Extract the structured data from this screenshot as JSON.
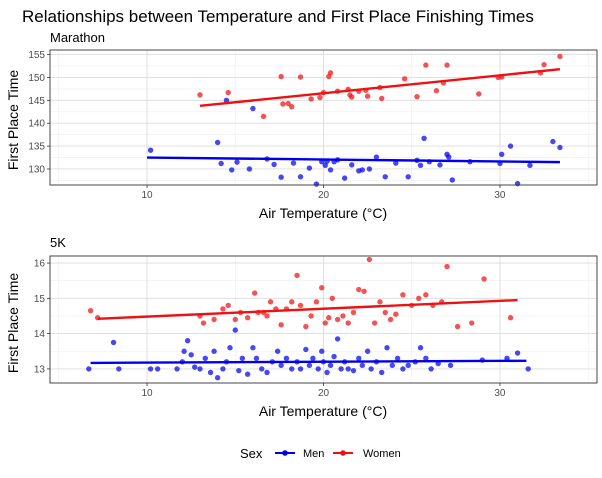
{
  "title": "Relationships between Temperature and First Place Finishing Times",
  "colors": {
    "Men": "#0000ee",
    "Women": "#ee1111",
    "grid_major": "#dcdcdc",
    "grid_minor": "#eeeeee",
    "panel_border": "#333333"
  },
  "legend": {
    "title": "Sex",
    "entries": [
      "Men",
      "Women"
    ],
    "placement": "bottom"
  },
  "chart_data": [
    {
      "type": "scatter",
      "subtitle": "Marathon",
      "xlabel": "Air Temperature (°C)",
      "ylabel": "First Place Time",
      "xlim": [
        4.5,
        35.5
      ],
      "ylim": [
        126.5,
        156.0
      ],
      "xticks": [
        10,
        20,
        30
      ],
      "yticks": [
        130,
        135,
        140,
        145,
        150,
        155
      ],
      "grid": true,
      "series": [
        {
          "name": "Men",
          "points": [
            [
              10.2,
              134.1
            ],
            [
              14.0,
              135.8
            ],
            [
              14.2,
              131.2
            ],
            [
              14.5,
              145.0
            ],
            [
              14.8,
              129.8
            ],
            [
              15.1,
              131.5
            ],
            [
              15.8,
              130.0
            ],
            [
              16.0,
              143.2
            ],
            [
              16.8,
              132.2
            ],
            [
              17.2,
              131.0
            ],
            [
              17.6,
              128.2
            ],
            [
              18.3,
              131.3
            ],
            [
              18.7,
              128.3
            ],
            [
              19.2,
              130.2
            ],
            [
              19.6,
              126.7
            ],
            [
              19.9,
              131.6
            ],
            [
              20.1,
              130.8
            ],
            [
              20.2,
              131.7
            ],
            [
              20.4,
              129.8
            ],
            [
              20.6,
              131.6
            ],
            [
              20.8,
              132.0
            ],
            [
              21.2,
              128.0
            ],
            [
              21.6,
              130.9
            ],
            [
              22.0,
              129.6
            ],
            [
              22.2,
              129.8
            ],
            [
              22.6,
              130.0
            ],
            [
              23.0,
              132.6
            ],
            [
              23.5,
              128.3
            ],
            [
              24.1,
              131.3
            ],
            [
              24.8,
              128.3
            ],
            [
              25.3,
              131.9
            ],
            [
              25.5,
              130.8
            ],
            [
              25.7,
              136.7
            ],
            [
              26.0,
              131.6
            ],
            [
              26.6,
              130.9
            ],
            [
              27.0,
              133.2
            ],
            [
              27.1,
              132.6
            ],
            [
              27.3,
              127.6
            ],
            [
              28.3,
              131.6
            ],
            [
              30.0,
              131.2
            ],
            [
              30.1,
              133.2
            ],
            [
              30.6,
              135.0
            ],
            [
              31.0,
              126.8
            ],
            [
              31.7,
              130.8
            ],
            [
              33.0,
              136.0
            ],
            [
              33.4,
              134.7
            ]
          ],
          "fit": [
            [
              10.0,
              132.5
            ],
            [
              33.4,
              131.5
            ]
          ]
        },
        {
          "name": "Women",
          "points": [
            [
              13.0,
              146.2
            ],
            [
              14.6,
              146.7
            ],
            [
              16.6,
              141.5
            ],
            [
              17.6,
              150.2
            ],
            [
              17.7,
              144.2
            ],
            [
              18.0,
              144.3
            ],
            [
              18.2,
              143.6
            ],
            [
              18.7,
              150.1
            ],
            [
              19.3,
              145.3
            ],
            [
              19.8,
              145.6
            ],
            [
              20.0,
              146.7
            ],
            [
              20.3,
              150.2
            ],
            [
              20.4,
              151.0
            ],
            [
              20.8,
              147.0
            ],
            [
              21.4,
              147.4
            ],
            [
              21.5,
              146.2
            ],
            [
              21.6,
              145.7
            ],
            [
              22.0,
              147.0
            ],
            [
              22.4,
              147.2
            ],
            [
              22.5,
              145.9
            ],
            [
              23.2,
              147.8
            ],
            [
              23.3,
              145.4
            ],
            [
              24.6,
              149.7
            ],
            [
              25.3,
              145.8
            ],
            [
              25.8,
              152.7
            ],
            [
              26.4,
              147.1
            ],
            [
              26.8,
              148.8
            ],
            [
              27.0,
              152.7
            ],
            [
              28.8,
              146.4
            ],
            [
              29.9,
              150.0
            ],
            [
              30.1,
              150.1
            ],
            [
              32.3,
              151.0
            ],
            [
              32.5,
              152.8
            ],
            [
              33.4,
              154.6
            ]
          ],
          "fit": [
            [
              13.0,
              143.8
            ],
            [
              33.4,
              151.8
            ]
          ]
        }
      ]
    },
    {
      "type": "scatter",
      "subtitle": "5K",
      "xlabel": "Air Temperature (°C)",
      "ylabel": "First Place Time",
      "xlim": [
        4.5,
        35.5
      ],
      "ylim": [
        12.6,
        16.2
      ],
      "xticks": [
        10,
        20,
        30
      ],
      "yticks": [
        13,
        14,
        15,
        16
      ],
      "grid": true,
      "series": [
        {
          "name": "Men",
          "points": [
            [
              6.7,
              13.0
            ],
            [
              8.1,
              13.75
            ],
            [
              8.4,
              13.0
            ],
            [
              10.2,
              13.0
            ],
            [
              10.6,
              13.0
            ],
            [
              11.7,
              13.0
            ],
            [
              12.0,
              13.2
            ],
            [
              12.1,
              13.5
            ],
            [
              12.3,
              13.8
            ],
            [
              12.5,
              13.4
            ],
            [
              12.7,
              13.05
            ],
            [
              13.0,
              13.0
            ],
            [
              13.3,
              13.3
            ],
            [
              13.6,
              12.9
            ],
            [
              13.8,
              13.5
            ],
            [
              14.0,
              12.75
            ],
            [
              14.3,
              13.0
            ],
            [
              14.5,
              13.2
            ],
            [
              14.7,
              13.6
            ],
            [
              15.0,
              14.1
            ],
            [
              15.2,
              12.95
            ],
            [
              15.4,
              13.3
            ],
            [
              15.7,
              12.85
            ],
            [
              16.0,
              13.6
            ],
            [
              16.2,
              13.3
            ],
            [
              16.5,
              13.0
            ],
            [
              16.8,
              12.9
            ],
            [
              17.1,
              13.2
            ],
            [
              17.4,
              13.5
            ],
            [
              17.6,
              13.1
            ],
            [
              17.9,
              13.3
            ],
            [
              18.2,
              13.0
            ],
            [
              18.5,
              13.2
            ],
            [
              18.7,
              13.0
            ],
            [
              19.0,
              13.55
            ],
            [
              19.2,
              13.1
            ],
            [
              19.4,
              13.3
            ],
            [
              19.7,
              13.0
            ],
            [
              19.9,
              13.5
            ],
            [
              20.0,
              13.2
            ],
            [
              20.2,
              12.9
            ],
            [
              20.4,
              13.1
            ],
            [
              20.6,
              13.35
            ],
            [
              20.8,
              13.85
            ],
            [
              21.0,
              13.0
            ],
            [
              21.2,
              13.2
            ],
            [
              21.4,
              13.0
            ],
            [
              21.7,
              12.95
            ],
            [
              22.0,
              13.3
            ],
            [
              22.2,
              13.1
            ],
            [
              22.5,
              13.5
            ],
            [
              22.7,
              13.0
            ],
            [
              23.0,
              13.2
            ],
            [
              23.3,
              12.9
            ],
            [
              23.6,
              13.6
            ],
            [
              23.9,
              13.1
            ],
            [
              24.2,
              13.3
            ],
            [
              24.5,
              13.0
            ],
            [
              24.8,
              13.1
            ],
            [
              25.2,
              13.2
            ],
            [
              25.5,
              13.6
            ],
            [
              25.8,
              13.3
            ],
            [
              26.1,
              13.0
            ],
            [
              26.5,
              13.15
            ],
            [
              27.2,
              13.1
            ],
            [
              29.0,
              13.25
            ],
            [
              30.4,
              13.3
            ],
            [
              31.0,
              13.45
            ],
            [
              31.6,
              13.0
            ]
          ],
          "fit": [
            [
              6.8,
              13.17
            ],
            [
              31.5,
              13.23
            ]
          ]
        },
        {
          "name": "Women",
          "points": [
            [
              6.8,
              14.65
            ],
            [
              7.2,
              14.45
            ],
            [
              13.0,
              14.5
            ],
            [
              13.2,
              14.3
            ],
            [
              13.8,
              14.4
            ],
            [
              14.3,
              14.7
            ],
            [
              14.6,
              14.8
            ],
            [
              15.0,
              14.4
            ],
            [
              15.3,
              14.6
            ],
            [
              15.7,
              14.45
            ],
            [
              16.1,
              15.15
            ],
            [
              16.3,
              14.6
            ],
            [
              16.6,
              14.6
            ],
            [
              16.8,
              14.5
            ],
            [
              17.0,
              14.9
            ],
            [
              17.3,
              14.7
            ],
            [
              17.6,
              14.25
            ],
            [
              17.9,
              14.7
            ],
            [
              18.2,
              14.9
            ],
            [
              18.5,
              15.65
            ],
            [
              18.7,
              14.8
            ],
            [
              19.0,
              14.2
            ],
            [
              19.3,
              14.5
            ],
            [
              19.6,
              14.9
            ],
            [
              19.9,
              15.3
            ],
            [
              20.1,
              14.3
            ],
            [
              20.3,
              14.45
            ],
            [
              20.5,
              15.0
            ],
            [
              20.8,
              14.4
            ],
            [
              21.1,
              14.5
            ],
            [
              21.4,
              14.3
            ],
            [
              21.7,
              14.6
            ],
            [
              22.0,
              15.25
            ],
            [
              22.3,
              15.2
            ],
            [
              22.6,
              16.1
            ],
            [
              22.9,
              14.3
            ],
            [
              23.2,
              14.9
            ],
            [
              23.5,
              14.6
            ],
            [
              23.8,
              14.4
            ],
            [
              24.1,
              14.55
            ],
            [
              24.5,
              15.1
            ],
            [
              25.0,
              14.8
            ],
            [
              25.4,
              15.0
            ],
            [
              25.8,
              15.1
            ],
            [
              26.2,
              14.8
            ],
            [
              26.7,
              14.9
            ],
            [
              27.0,
              15.9
            ],
            [
              27.6,
              14.2
            ],
            [
              28.4,
              14.3
            ],
            [
              29.1,
              15.55
            ],
            [
              30.6,
              14.45
            ]
          ],
          "fit": [
            [
              7.2,
              14.42
            ],
            [
              31.0,
              14.95
            ]
          ]
        }
      ]
    }
  ]
}
